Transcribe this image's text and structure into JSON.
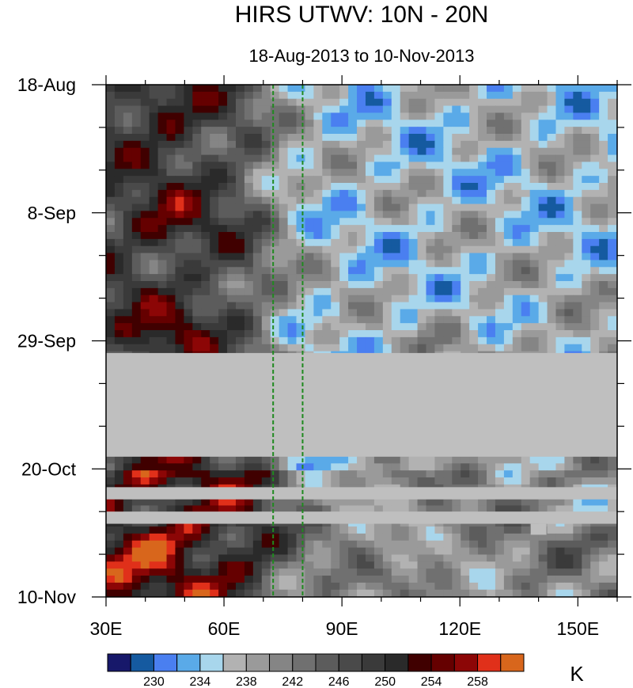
{
  "chart_data": {
    "type": "heatmap",
    "title": "HIRS UTWV: 10N - 20N",
    "subtitle": "18-Aug-2013 to 10-Nov-2013",
    "x_axis": {
      "range": [
        30,
        160
      ],
      "ticks": [
        30,
        60,
        90,
        120,
        150
      ],
      "tick_labels": [
        "30E",
        "60E",
        "90E",
        "120E",
        "150E"
      ]
    },
    "y_axis": {
      "range_days_since_start": [
        0,
        84
      ],
      "ticks": [
        0,
        21,
        42,
        63,
        84
      ],
      "tick_labels": [
        "18-Aug",
        "8-Sep",
        "29-Sep",
        "20-Oct",
        "10-Nov"
      ],
      "direction": "downward"
    },
    "reference_lines": [
      {
        "lon": 72.5,
        "style": "dashed",
        "color": "#1f8a1f"
      },
      {
        "lon": 80,
        "style": "dashed",
        "color": "#1f8a1f"
      }
    ],
    "missing_periods_days": [
      [
        44,
        61
      ],
      [
        66,
        68
      ],
      [
        70,
        72
      ]
    ],
    "colorbar": {
      "unit": "K",
      "levels": [
        228,
        230,
        232,
        234,
        236,
        238,
        240,
        242,
        244,
        246,
        248,
        250,
        252,
        254,
        256,
        258,
        260
      ],
      "labels": [
        "230",
        "234",
        "238",
        "242",
        "246",
        "250",
        "254",
        "258"
      ],
      "colors": [
        "#17186a",
        "#155aa0",
        "#4a7ff0",
        "#5aaae8",
        "#a8d6ec",
        "#b2b2b2",
        "#9a9a9a",
        "#858585",
        "#707070",
        "#5c5c5c",
        "#4a4a4a",
        "#3a3a3a",
        "#2a2a2a",
        "#400000",
        "#650000",
        "#8c0606",
        "#e0301a",
        "#d8661c"
      ],
      "missing_color": "#bfbfbf"
    }
  }
}
